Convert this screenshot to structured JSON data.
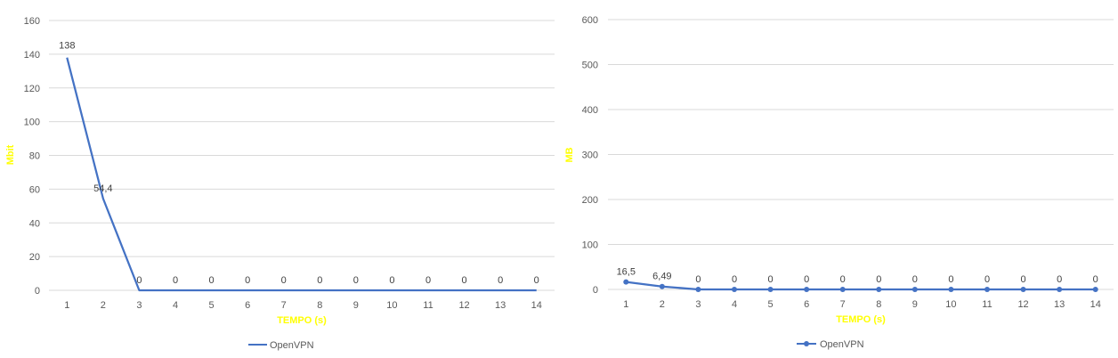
{
  "colors": {
    "series": "#4472C4",
    "axis_title": "#FFFF00",
    "grid": "#D9D9D9",
    "tick": "#595959",
    "data_label": "#404040"
  },
  "chart_data": [
    {
      "type": "line",
      "markers": false,
      "ylabel": "Mbit",
      "xlabel": "TEMPO (s)",
      "categories": [
        "1",
        "2",
        "3",
        "4",
        "5",
        "6",
        "7",
        "8",
        "9",
        "10",
        "11",
        "12",
        "13",
        "14"
      ],
      "yticks": [
        "0",
        "20",
        "40",
        "60",
        "80",
        "100",
        "120",
        "140",
        "160"
      ],
      "ylim": [
        0,
        160
      ],
      "grid": true,
      "legend": "bottom",
      "series": [
        {
          "name": "OpenVPN",
          "values": [
            138,
            54.4,
            0,
            0,
            0,
            0,
            0,
            0,
            0,
            0,
            0,
            0,
            0,
            0
          ]
        }
      ],
      "data_labels": [
        "138",
        "54,4",
        "0",
        "0",
        "0",
        "0",
        "0",
        "0",
        "0",
        "0",
        "0",
        "0",
        "0",
        "0"
      ]
    },
    {
      "type": "line",
      "markers": true,
      "ylabel": "MB",
      "xlabel": "TEMPO (s)",
      "categories": [
        "1",
        "2",
        "3",
        "4",
        "5",
        "6",
        "7",
        "8",
        "9",
        "10",
        "11",
        "12",
        "13",
        "14"
      ],
      "yticks": [
        "0",
        "100",
        "200",
        "300",
        "400",
        "500",
        "600"
      ],
      "ylim": [
        0,
        600
      ],
      "grid": true,
      "legend": "bottom",
      "series": [
        {
          "name": "OpenVPN",
          "values": [
            16.5,
            6.49,
            0,
            0,
            0,
            0,
            0,
            0,
            0,
            0,
            0,
            0,
            0,
            0
          ]
        }
      ],
      "data_labels": [
        "16,5",
        "6,49",
        "0",
        "0",
        "0",
        "0",
        "0",
        "0",
        "0",
        "0",
        "0",
        "0",
        "0",
        "0"
      ]
    }
  ]
}
